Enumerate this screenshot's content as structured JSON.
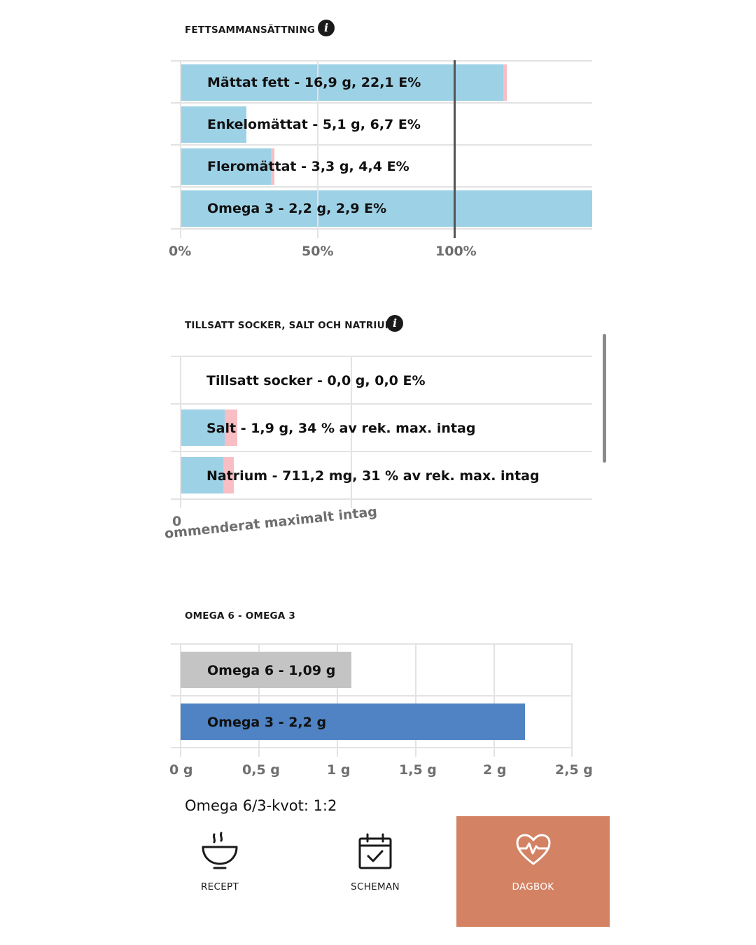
{
  "fat": {
    "title": "FETTSAMMANSÄTTNING",
    "info_icon": "info-icon",
    "rows": [
      {
        "label": "Mättat fett - 16,9 g, 22,1 E%",
        "percent": 117.5,
        "over_percent": 1.5
      },
      {
        "label": "Enkelomättat - 5,1 g, 6,7 E%",
        "percent": 24
      },
      {
        "label": "Fleromättat - 3,3 g, 4,4 E%",
        "percent": 33,
        "over_percent": 1.2
      },
      {
        "label": "Omega 3 - 2,2 g, 2,9 E%",
        "percent": 150
      }
    ],
    "ticks": [
      "0%",
      "50%",
      "100%"
    ]
  },
  "sugar": {
    "title": "TILLSATT SOCKER, SALT OCH NATRIUM",
    "info_icon": "info-icon",
    "rows": [
      {
        "label": "Tillsatt socker - 0,0 g, 0,0 E%",
        "percent": 0,
        "over_percent": 0
      },
      {
        "label": "Salt - 1,9 g, 34 % av rek. max. intag",
        "percent": 26,
        "over_percent": 7
      },
      {
        "label": "Natrium - 711,2 mg, 31 % av rek. max. intag",
        "percent": 25,
        "over_percent": 6
      }
    ],
    "tick_zero": "0",
    "reference_label": "ommenderat maximalt intag"
  },
  "omega": {
    "title": "OMEGA 6 - OMEGA 3",
    "rows": [
      {
        "label": "Omega 6 - 1,09 g",
        "value": 1.09,
        "color": "#c4c4c4"
      },
      {
        "label": "Omega 3 - 2,2 g",
        "value": 2.2,
        "color": "#4f83c3"
      }
    ],
    "ticks": [
      "0 g",
      "0,5 g",
      "1 g",
      "1,5 g",
      "2 g",
      "2,5 g"
    ],
    "max": 2.5,
    "ratio": "Omega 6/3-kvot: 1:2"
  },
  "nav": {
    "items": [
      {
        "label": "RECEPT",
        "icon": "bowl-icon",
        "active": false
      },
      {
        "label": "SCHEMAN",
        "icon": "calendar-icon",
        "active": false
      },
      {
        "label": "DAGBOK",
        "icon": "heart-pulse-icon",
        "active": true
      }
    ],
    "active_color": "#d38263"
  }
}
